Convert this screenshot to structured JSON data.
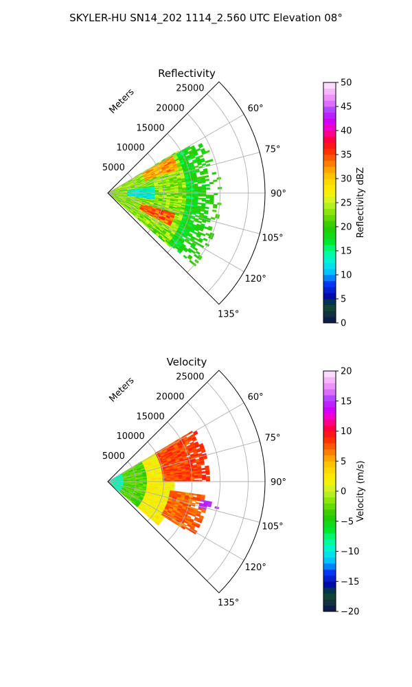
{
  "figure": {
    "title": "SKYLER-HU  SN14_202  1114_2.560 UTC Elevation 08°"
  },
  "chart_data": [
    {
      "type": "heatmap",
      "projection": "polar-sector",
      "title": "Reflectivity",
      "range_axis_label": "Meters",
      "range_ticks": [
        "5000",
        "10000",
        "15000",
        "20000",
        "25000"
      ],
      "range_max": 28000,
      "azimuth_ticks": [
        "60°",
        "75°",
        "90°",
        "105°",
        "120°",
        "135°"
      ],
      "azimuth_range": [
        45,
        135
      ],
      "grid": true,
      "colorbar": {
        "label": "Reflectivity dBZ",
        "min": 0,
        "max": 50,
        "ticks": [
          "0",
          "5",
          "10",
          "15",
          "20",
          "25",
          "30",
          "35",
          "40",
          "45",
          "50"
        ]
      },
      "field_regions": [
        {
          "azimuth_deg": [
            59,
            131
          ],
          "range_m": [
            0,
            14500
          ],
          "value_dbz": 23
        },
        {
          "azimuth_deg": [
            82,
            98
          ],
          "range_m": [
            3500,
            8500
          ],
          "value_dbz": 13
        },
        {
          "azimuth_deg": [
            60,
            72
          ],
          "range_m": [
            7000,
            13000
          ],
          "value_dbz": 32
        },
        {
          "azimuth_deg": [
            107,
            118
          ],
          "range_m": [
            6500,
            12500
          ],
          "value_dbz": 34
        },
        {
          "azimuth_deg": [
            60,
            130
          ],
          "range_m": [
            14000,
            20000
          ],
          "value_dbz": 18
        }
      ]
    },
    {
      "type": "heatmap",
      "projection": "polar-sector",
      "title": "Velocity",
      "range_axis_label": "Meters",
      "range_ticks": [
        "5000",
        "10000",
        "15000",
        "20000",
        "25000"
      ],
      "range_max": 28000,
      "azimuth_ticks": [
        "60°",
        "75°",
        "90°",
        "105°",
        "120°",
        "135°"
      ],
      "azimuth_range": [
        45,
        135
      ],
      "grid": true,
      "colorbar": {
        "label": "Velocity (m/s)",
        "min": -20,
        "max": 20,
        "ticks": [
          "−20",
          "−15",
          "−10",
          "−5",
          "0",
          "5",
          "10",
          "15",
          "20"
        ]
      },
      "field_regions": [
        {
          "azimuth_deg": [
            59,
            131
          ],
          "range_m": [
            0,
            3000
          ],
          "value_ms": -9
        },
        {
          "azimuth_deg": [
            59,
            131
          ],
          "range_m": [
            3000,
            7000
          ],
          "value_ms": -3
        },
        {
          "azimuth_deg": [
            59,
            131
          ],
          "range_m": [
            7000,
            12000
          ],
          "value_ms": 2
        },
        {
          "azimuth_deg": [
            59,
            90
          ],
          "range_m": [
            10000,
            18000
          ],
          "value_ms": 8
        },
        {
          "azimuth_deg": [
            98,
            122
          ],
          "range_m": [
            11000,
            18000
          ],
          "value_ms": 7
        },
        {
          "azimuth_deg": [
            101,
            106
          ],
          "range_m": [
            17000,
            22000
          ],
          "value_ms": 14
        }
      ]
    }
  ],
  "colors": {
    "grid": "#b0b0b0",
    "frame": "#000000"
  }
}
